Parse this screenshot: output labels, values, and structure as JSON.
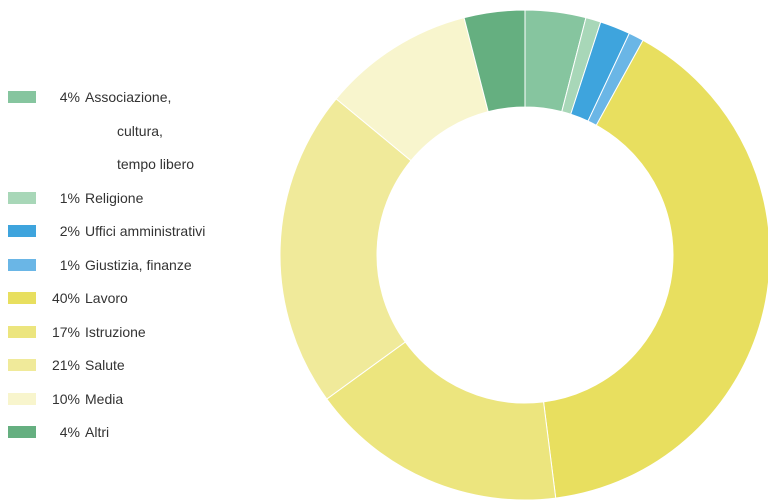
{
  "chart_data": {
    "type": "pie",
    "style": "donut",
    "legend_position": "left",
    "slices": [
      {
        "label_lines": [
          "Associazione,",
          "cultura,",
          "tempo libero"
        ],
        "pct_label": "4%",
        "value": 4,
        "color": "#86c59f"
      },
      {
        "label_lines": [
          "Religione"
        ],
        "pct_label": "1%",
        "value": 1,
        "color": "#a8d7b8"
      },
      {
        "label_lines": [
          "Uffici amministrativi"
        ],
        "pct_label": "2%",
        "value": 2,
        "color": "#3ea4dd"
      },
      {
        "label_lines": [
          "Giustizia, finanze"
        ],
        "pct_label": "1%",
        "value": 1,
        "color": "#6ab6e6"
      },
      {
        "label_lines": [
          "Lavoro"
        ],
        "pct_label": "40%",
        "value": 40,
        "color": "#e8df5f"
      },
      {
        "label_lines": [
          "Istruzione"
        ],
        "pct_label": "17%",
        "value": 17,
        "color": "#ece57e"
      },
      {
        "label_lines": [
          "Salute"
        ],
        "pct_label": "21%",
        "value": 21,
        "color": "#f0ea9a"
      },
      {
        "label_lines": [
          "Media"
        ],
        "pct_label": "10%",
        "value": 10,
        "color": "#f8f5cd"
      },
      {
        "label_lines": [
          "Altri"
        ],
        "pct_label": "4%",
        "value": 4,
        "color": "#65af80"
      }
    ]
  }
}
